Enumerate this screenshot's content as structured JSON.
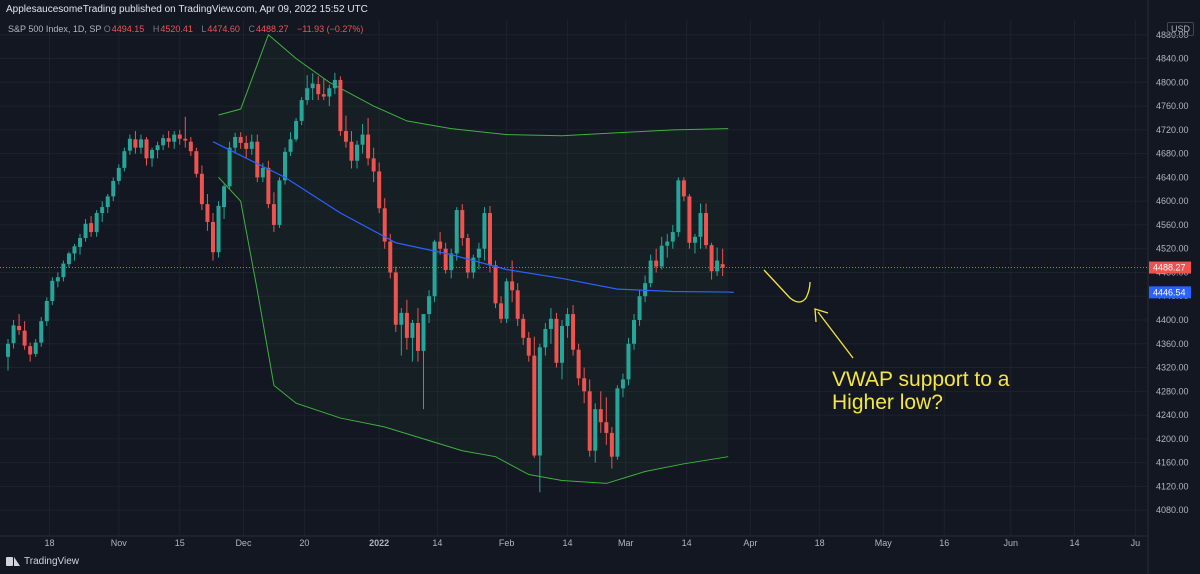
{
  "header": {
    "publisher": "ApplesaucesomeTrading published on TradingView.com, Apr 09, 2022 15:52 UTC",
    "symbol": "S&P 500 Index, 1D, SP",
    "ohlc": {
      "O": "4494.15",
      "H": "4520.41",
      "L": "4474.60",
      "C": "4488.27",
      "change": "−11.93 (−0.27%)"
    }
  },
  "currency": "USD",
  "brand": "TradingView",
  "annotation": {
    "line1": "VWAP support to a",
    "line2": "Higher low?"
  },
  "colors": {
    "up": "#26a69a",
    "down": "#ef5350",
    "vwap": "#2962ff",
    "band": "#3fb13f",
    "annotation": "#f5e642",
    "price_badge": "#ef5350",
    "vwap_badge": "#2962ff"
  },
  "chart_data": {
    "type": "candlestick",
    "y_ticks": [
      "4080.00",
      "4120.00",
      "4160.00",
      "4200.00",
      "4240.00",
      "4280.00",
      "4320.00",
      "4360.00",
      "4400.00",
      "4440.00",
      "4480.00",
      "4520.00",
      "4560.00",
      "4600.00",
      "4640.00",
      "4680.00",
      "4720.00",
      "4760.00",
      "4800.00",
      "4840.00",
      "4880.00"
    ],
    "ylim": [
      4050,
      4888
    ],
    "x_ticks": [
      "18",
      "Nov",
      "15",
      "Dec",
      "20",
      "2022",
      "14",
      "Feb",
      "14",
      "Mar",
      "14",
      "Apr",
      "18",
      "May",
      "16",
      "Jun",
      "14",
      "Ju"
    ],
    "last_price": "4488.27",
    "vwap_value": "4446.54",
    "candles": [
      [
        4338,
        4368,
        4315,
        4360
      ],
      [
        4361,
        4400,
        4352,
        4391
      ],
      [
        4390,
        4410,
        4375,
        4383
      ],
      [
        4382,
        4398,
        4350,
        4357
      ],
      [
        4356,
        4362,
        4330,
        4342
      ],
      [
        4343,
        4368,
        4338,
        4362
      ],
      [
        4362,
        4405,
        4355,
        4398
      ],
      [
        4398,
        4438,
        4390,
        4432
      ],
      [
        4432,
        4472,
        4425,
        4466
      ],
      [
        4465,
        4480,
        4455,
        4472
      ],
      [
        4472,
        4500,
        4465,
        4495
      ],
      [
        4494,
        4515,
        4488,
        4512
      ],
      [
        4512,
        4528,
        4500,
        4524
      ],
      [
        4523,
        4545,
        4510,
        4538
      ],
      [
        4538,
        4570,
        4532,
        4562
      ],
      [
        4563,
        4575,
        4540,
        4548
      ],
      [
        4548,
        4585,
        4540,
        4580
      ],
      [
        4580,
        4600,
        4565,
        4590
      ],
      [
        4590,
        4612,
        4580,
        4608
      ],
      [
        4608,
        4640,
        4600,
        4634
      ],
      [
        4634,
        4662,
        4628,
        4656
      ],
      [
        4656,
        4690,
        4650,
        4684
      ],
      [
        4685,
        4712,
        4678,
        4705
      ],
      [
        4704,
        4718,
        4680,
        4690
      ],
      [
        4690,
        4712,
        4680,
        4704
      ],
      [
        4704,
        4708,
        4660,
        4672
      ],
      [
        4672,
        4690,
        4658,
        4686
      ],
      [
        4686,
        4700,
        4672,
        4694
      ],
      [
        4694,
        4712,
        4686,
        4706
      ],
      [
        4706,
        4718,
        4690,
        4700
      ],
      [
        4700,
        4718,
        4688,
        4712
      ],
      [
        4712,
        4720,
        4695,
        4705
      ],
      [
        4705,
        4742,
        4690,
        4702
      ],
      [
        4700,
        4708,
        4676,
        4684
      ],
      [
        4684,
        4690,
        4640,
        4646
      ],
      [
        4646,
        4660,
        4585,
        4595
      ],
      [
        4595,
        4612,
        4550,
        4565
      ],
      [
        4565,
        4580,
        4500,
        4514
      ],
      [
        4514,
        4600,
        4505,
        4592
      ],
      [
        4590,
        4628,
        4570,
        4625
      ],
      [
        4625,
        4700,
        4620,
        4690
      ],
      [
        4690,
        4715,
        4680,
        4708
      ],
      [
        4708,
        4716,
        4688,
        4698
      ],
      [
        4698,
        4710,
        4672,
        4688
      ],
      [
        4688,
        4712,
        4678,
        4700
      ],
      [
        4700,
        4712,
        4632,
        4640
      ],
      [
        4640,
        4664,
        4632,
        4656
      ],
      [
        4656,
        4668,
        4588,
        4595
      ],
      [
        4595,
        4615,
        4548,
        4560
      ],
      [
        4560,
        4640,
        4555,
        4635
      ],
      [
        4635,
        4690,
        4628,
        4683
      ],
      [
        4683,
        4716,
        4676,
        4704
      ],
      [
        4704,
        4740,
        4700,
        4735
      ],
      [
        4735,
        4775,
        4728,
        4770
      ],
      [
        4770,
        4812,
        4762,
        4790
      ],
      [
        4790,
        4815,
        4770,
        4798
      ],
      [
        4797,
        4810,
        4770,
        4780
      ],
      [
        4780,
        4806,
        4770,
        4776
      ],
      [
        4776,
        4796,
        4760,
        4790
      ],
      [
        4790,
        4816,
        4780,
        4804
      ],
      [
        4804,
        4810,
        4710,
        4718
      ],
      [
        4718,
        4744,
        4690,
        4700
      ],
      [
        4700,
        4718,
        4655,
        4668
      ],
      [
        4668,
        4702,
        4655,
        4695
      ],
      [
        4695,
        4730,
        4680,
        4712
      ],
      [
        4712,
        4740,
        4660,
        4672
      ],
      [
        4672,
        4690,
        4632,
        4650
      ],
      [
        4650,
        4665,
        4580,
        4588
      ],
      [
        4588,
        4605,
        4520,
        4532
      ],
      [
        4532,
        4545,
        4470,
        4480
      ],
      [
        4480,
        4490,
        4380,
        4392
      ],
      [
        4392,
        4420,
        4340,
        4412
      ],
      [
        4412,
        4434,
        4350,
        4370
      ],
      [
        4370,
        4400,
        4330,
        4395
      ],
      [
        4395,
        4420,
        4330,
        4348
      ],
      [
        4348,
        4410,
        4250,
        4410
      ],
      [
        4410,
        4450,
        4395,
        4440
      ],
      [
        4440,
        4535,
        4430,
        4532
      ],
      [
        4532,
        4548,
        4510,
        4520
      ],
      [
        4520,
        4530,
        4478,
        4484
      ],
      [
        4484,
        4520,
        4470,
        4512
      ],
      [
        4512,
        4590,
        4500,
        4585
      ],
      [
        4585,
        4595,
        4525,
        4538
      ],
      [
        4538,
        4545,
        4470,
        4480
      ],
      [
        4480,
        4510,
        4470,
        4505
      ],
      [
        4505,
        4530,
        4485,
        4520
      ],
      [
        4520,
        4590,
        4500,
        4580
      ],
      [
        4580,
        4592,
        4480,
        4492
      ],
      [
        4492,
        4500,
        4420,
        4428
      ],
      [
        4428,
        4440,
        4395,
        4402
      ],
      [
        4402,
        4470,
        4395,
        4465
      ],
      [
        4465,
        4500,
        4430,
        4450
      ],
      [
        4450,
        4462,
        4390,
        4402
      ],
      [
        4402,
        4410,
        4358,
        4370
      ],
      [
        4370,
        4380,
        4330,
        4340
      ],
      [
        4340,
        4372,
        4168,
        4172
      ],
      [
        4172,
        4360,
        4110,
        4354
      ],
      [
        4354,
        4395,
        4340,
        4385
      ],
      [
        4385,
        4420,
        4360,
        4402
      ],
      [
        4402,
        4412,
        4320,
        4328
      ],
      [
        4328,
        4400,
        4300,
        4390
      ],
      [
        4390,
        4420,
        4370,
        4410
      ],
      [
        4410,
        4425,
        4340,
        4350
      ],
      [
        4350,
        4360,
        4290,
        4302
      ],
      [
        4302,
        4320,
        4260,
        4280
      ],
      [
        4280,
        4300,
        4170,
        4180
      ],
      [
        4180,
        4260,
        4160,
        4250
      ],
      [
        4250,
        4280,
        4210,
        4228
      ],
      [
        4228,
        4270,
        4190,
        4210
      ],
      [
        4210,
        4220,
        4150,
        4170
      ],
      [
        4170,
        4290,
        4165,
        4285
      ],
      [
        4285,
        4310,
        4270,
        4300
      ],
      [
        4300,
        4370,
        4290,
        4360
      ],
      [
        4360,
        4410,
        4350,
        4400
      ],
      [
        4400,
        4450,
        4390,
        4440
      ],
      [
        4440,
        4475,
        4430,
        4462
      ],
      [
        4462,
        4510,
        4455,
        4500
      ],
      [
        4500,
        4520,
        4480,
        4490
      ],
      [
        4490,
        4540,
        4485,
        4525
      ],
      [
        4525,
        4545,
        4505,
        4532
      ],
      [
        4532,
        4560,
        4520,
        4548
      ],
      [
        4548,
        4640,
        4540,
        4635
      ],
      [
        4635,
        4640,
        4600,
        4608
      ],
      [
        4608,
        4612,
        4520,
        4530
      ],
      [
        4530,
        4545,
        4512,
        4540
      ],
      [
        4540,
        4596,
        4520,
        4580
      ],
      [
        4580,
        4596,
        4520,
        4526
      ],
      [
        4526,
        4530,
        4468,
        4482
      ],
      [
        4482,
        4522,
        4474,
        4500
      ],
      [
        4494,
        4520,
        4474,
        4488
      ]
    ],
    "vwap_line": [
      [
        37,
        4700
      ],
      [
        50,
        4640
      ],
      [
        60,
        4580
      ],
      [
        70,
        4530
      ],
      [
        80,
        4510
      ],
      [
        90,
        4485
      ],
      [
        100,
        4470
      ],
      [
        110,
        4452
      ],
      [
        120,
        4448
      ],
      [
        130,
        4447
      ],
      [
        131,
        4446.5
      ]
    ],
    "upper_band": [
      [
        38,
        4745
      ],
      [
        42,
        4755
      ],
      [
        47,
        4880
      ],
      [
        52,
        4840
      ],
      [
        58,
        4800
      ],
      [
        66,
        4760
      ],
      [
        72,
        4735
      ],
      [
        80,
        4722
      ],
      [
        90,
        4712
      ],
      [
        100,
        4710
      ],
      [
        110,
        4715
      ],
      [
        120,
        4720
      ],
      [
        130,
        4722
      ]
    ],
    "lower_band": [
      [
        38,
        4640
      ],
      [
        42,
        4600
      ],
      [
        45,
        4450
      ],
      [
        48,
        4290
      ],
      [
        52,
        4260
      ],
      [
        60,
        4235
      ],
      [
        68,
        4220
      ],
      [
        75,
        4200
      ],
      [
        82,
        4180
      ],
      [
        88,
        4170
      ],
      [
        94,
        4140
      ],
      [
        100,
        4130
      ],
      [
        108,
        4125
      ],
      [
        115,
        4145
      ],
      [
        122,
        4158
      ],
      [
        130,
        4170
      ]
    ]
  }
}
